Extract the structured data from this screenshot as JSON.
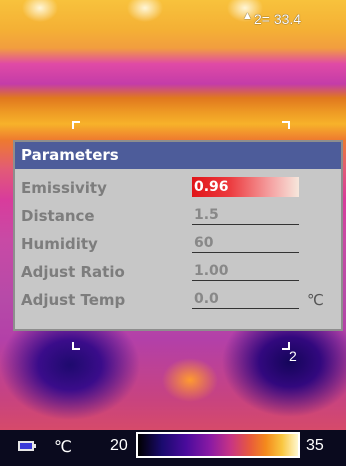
{
  "readout": {
    "marker": "▲",
    "text": "2= 33.4"
  },
  "spot_label": "2",
  "dialog": {
    "title": "Parameters",
    "rows": [
      {
        "label": "Emissivity",
        "value": "0.96",
        "unit": "",
        "active": true
      },
      {
        "label": "Distance",
        "value": "1.5",
        "unit": ""
      },
      {
        "label": "Humidity",
        "value": "60",
        "unit": ""
      },
      {
        "label": "Adjust Ratio",
        "value": "1.00",
        "unit": ""
      },
      {
        "label": "Adjust Temp",
        "value": "0.0",
        "unit": "℃"
      }
    ]
  },
  "status": {
    "unit": "℃",
    "scale_min": "20",
    "scale_max": "35",
    "battery_icon": "battery-icon"
  },
  "colors": {
    "title_bar": "#4d5c9a",
    "dialog_bg": "#c7c7c7",
    "active_field": "#e01418"
  }
}
